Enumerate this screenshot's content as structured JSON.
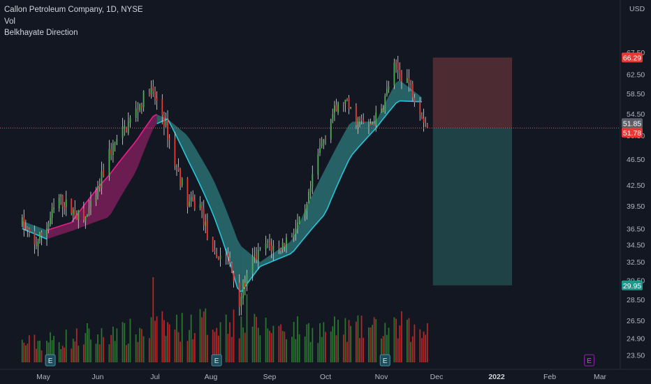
{
  "legend": {
    "title": "Callon Petroleum Company, 1D, NYSE",
    "indicator1": "Vol",
    "indicator2": "Belkhayate Direction"
  },
  "currency": "USD",
  "colors": {
    "background": "#131722",
    "up": "#26a69a",
    "down": "#ef5350",
    "candle_up": "#4caf50",
    "candle_down": "#e53935",
    "vol_up": "#2e7d32",
    "vol_down": "#c62828",
    "band_up_fill": "#2a6f72",
    "band_up_line": "#26c6da",
    "band_down_fill": "#7b1f5a",
    "band_down_line": "#e91e8c",
    "stop_zone": "#4d2b33",
    "target_zone": "#1e4246",
    "earnings_badge": "#1f4e5a",
    "earnings_badge_future": "#8e24aa"
  },
  "chart_data": {
    "type": "candlestick",
    "title": "Callon Petroleum Company, 1D, NYSE",
    "y_axis": {
      "scale": "log",
      "range": [
        22.9,
        73.5
      ],
      "ticks": [
        "23.50",
        "24.90",
        "26.50",
        "28.50",
        "30.50",
        "32.50",
        "34.50",
        "36.50",
        "39.50",
        "42.50",
        "46.50",
        "50.50",
        "54.50",
        "58.50",
        "62.50",
        "67.50"
      ]
    },
    "x_axis": {
      "labels": [
        "May",
        "Jun",
        "Jul",
        "Aug",
        "Sep",
        "Oct",
        "Nov",
        "Dec",
        "2022",
        "Feb",
        "Mar"
      ],
      "bold_labels": [
        "2022"
      ]
    },
    "price_tags": [
      {
        "label": "66.29",
        "role": "stop"
      },
      {
        "label": "51.85",
        "role": "last"
      },
      {
        "label": "51.78",
        "role": "entry"
      },
      {
        "label": "29.95",
        "role": "target"
      }
    ],
    "position_tool": {
      "type": "short",
      "entry": 51.78,
      "stop": 66.29,
      "target": 29.95,
      "start_date": "2021-11-29",
      "end_date": "2022-01-10"
    },
    "earnings_markers": [
      "2021-05-05",
      "2021-08-04",
      "2021-11-03",
      "2022-02-23"
    ],
    "price_path": [
      [
        "2021-04-19",
        37.2
      ],
      [
        "2021-04-26",
        34.3
      ],
      [
        "2021-05-03",
        36.8
      ],
      [
        "2021-05-10",
        40.5
      ],
      [
        "2021-05-17",
        39.0
      ],
      [
        "2021-05-24",
        37.5
      ],
      [
        "2021-05-31",
        40.5
      ],
      [
        "2021-06-07",
        47.5
      ],
      [
        "2021-06-14",
        51.0
      ],
      [
        "2021-06-21",
        55.0
      ],
      [
        "2021-06-28",
        59.5
      ],
      [
        "2021-07-05",
        54.5
      ],
      [
        "2021-07-12",
        46.0
      ],
      [
        "2021-07-19",
        40.0
      ],
      [
        "2021-07-26",
        39.5
      ],
      [
        "2021-08-02",
        33.0
      ],
      [
        "2021-08-09",
        33.5
      ],
      [
        "2021-08-16",
        28.5
      ],
      [
        "2021-08-23",
        32.5
      ],
      [
        "2021-08-30",
        34.5
      ],
      [
        "2021-09-06",
        34.0
      ],
      [
        "2021-09-13",
        36.0
      ],
      [
        "2021-09-20",
        38.0
      ],
      [
        "2021-09-27",
        47.0
      ],
      [
        "2021-10-04",
        54.0
      ],
      [
        "2021-10-11",
        57.0
      ],
      [
        "2021-10-18",
        53.5
      ],
      [
        "2021-10-25",
        52.0
      ],
      [
        "2021-11-01",
        55.0
      ],
      [
        "2021-11-08",
        64.0
      ],
      [
        "2021-11-15",
        61.5
      ],
      [
        "2021-11-22",
        55.5
      ],
      [
        "2021-11-26",
        51.85
      ]
    ],
    "band_path": [
      [
        "2021-04-19",
        36.5,
        37.5,
        "up"
      ],
      [
        "2021-05-03",
        35.2,
        36.3,
        "down"
      ],
      [
        "2021-05-17",
        36.2,
        37.3,
        "up"
      ],
      [
        "2021-06-07",
        38.0,
        44.0,
        "up"
      ],
      [
        "2021-06-21",
        44.5,
        49.5,
        "up"
      ],
      [
        "2021-07-01",
        52.5,
        54.5,
        "up"
      ],
      [
        "2021-07-08",
        53.5,
        53.5,
        "down"
      ],
      [
        "2021-07-19",
        46.5,
        50.5,
        "down"
      ],
      [
        "2021-08-02",
        38.5,
        43.5,
        "down"
      ],
      [
        "2021-08-16",
        29.0,
        34.5,
        "down"
      ],
      [
        "2021-08-27",
        32.0,
        32.5,
        "up"
      ],
      [
        "2021-09-13",
        33.5,
        35.0,
        "up"
      ],
      [
        "2021-10-01",
        38.5,
        45.0,
        "up"
      ],
      [
        "2021-10-15",
        47.0,
        53.0,
        "up"
      ],
      [
        "2021-10-29",
        51.8,
        53.0,
        "up"
      ],
      [
        "2021-11-10",
        57.0,
        61.5,
        "up"
      ],
      [
        "2021-11-24",
        56.8,
        57.4,
        "up"
      ]
    ],
    "volume_scale_max": 100,
    "volume_profile": [
      [
        "2021-04-19",
        22,
        10
      ],
      [
        "2021-05-17",
        28,
        14
      ],
      [
        "2021-06-07",
        30,
        14
      ],
      [
        "2021-07-01",
        40,
        20
      ],
      [
        "2021-08-02",
        48,
        20
      ],
      [
        "2021-08-23",
        42,
        16
      ],
      [
        "2021-09-27",
        38,
        16
      ],
      [
        "2021-11-01",
        40,
        16
      ],
      [
        "2021-11-26",
        34,
        14
      ]
    ],
    "volume_spikes": [
      [
        "2021-05-26",
        46
      ],
      [
        "2021-06-09",
        42
      ],
      [
        "2021-06-30",
        100
      ],
      [
        "2021-07-16",
        58
      ],
      [
        "2021-08-13",
        62
      ],
      [
        "2021-08-20",
        80
      ],
      [
        "2021-10-08",
        50
      ],
      [
        "2021-11-12",
        60
      ],
      [
        "2021-11-16",
        52
      ],
      [
        "2021-11-26",
        46
      ]
    ]
  }
}
